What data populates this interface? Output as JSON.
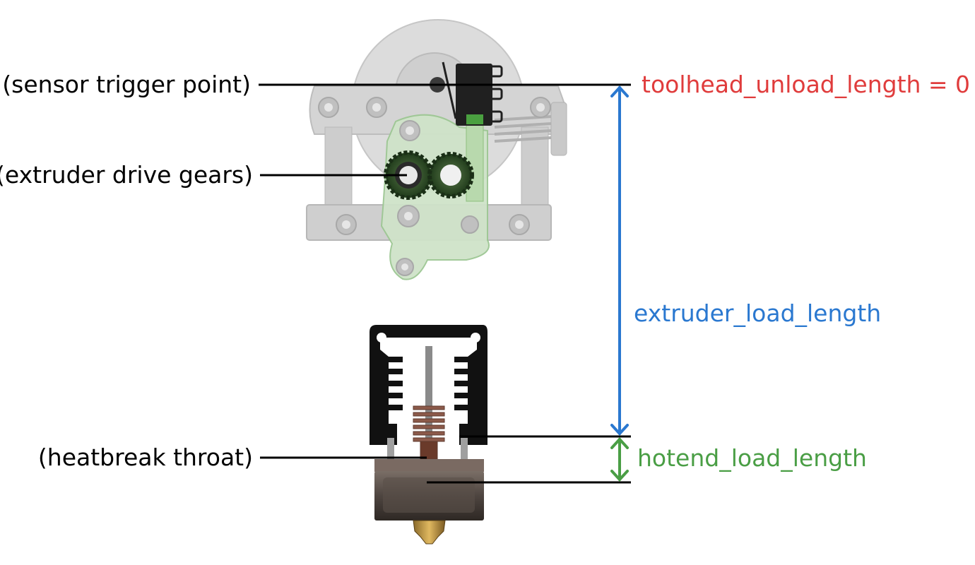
{
  "labels": {
    "sensor_trigger": "(sensor trigger point)",
    "drive_gears": "(extruder drive gears)",
    "heatbreak": "(heatbreak throat)",
    "unload_length": "toolhead_unload_length = 0",
    "extruder_load": "extruder_load_length",
    "hotend_load": "hotend_load_length"
  },
  "colors": {
    "unload": "#e03c3c",
    "extruder": "#2a78d0",
    "hotend": "#4a9e45",
    "leader": "#000000"
  }
}
